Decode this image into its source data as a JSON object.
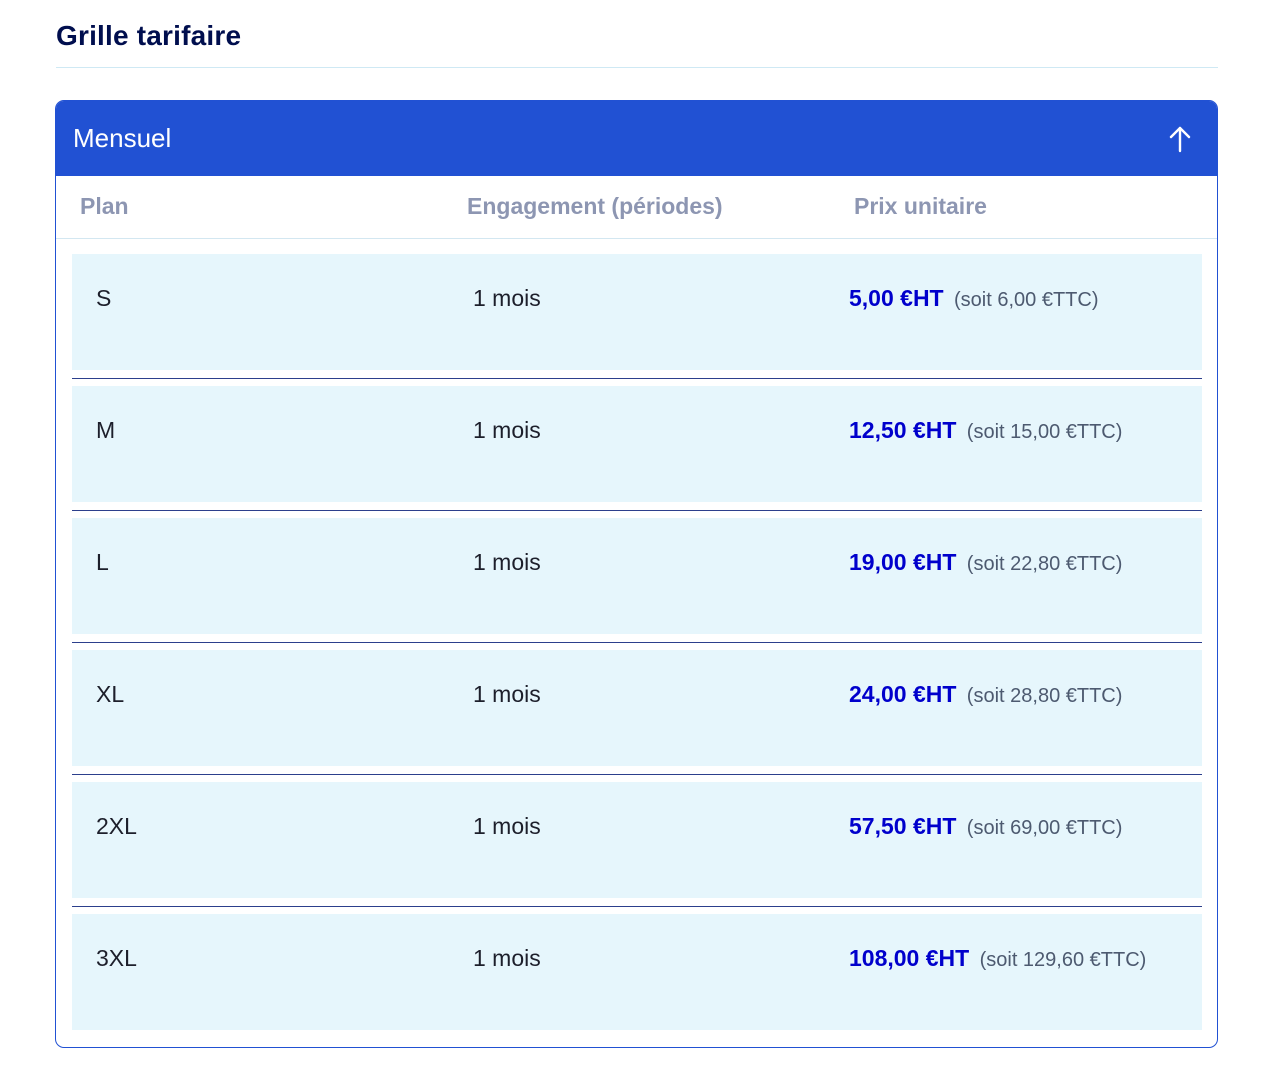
{
  "section": {
    "title": "Grille tarifaire"
  },
  "panel": {
    "title": "Mensuel",
    "toggle_icon": "arrow-up-icon"
  },
  "table": {
    "headers": [
      "Plan",
      "Engagement (périodes)",
      "Prix unitaire"
    ],
    "rows": [
      {
        "plan": "S",
        "engagement": "1 mois",
        "price_ht": "5,00 €HT",
        "price_ttc": "(soit 6,00 €TTC)"
      },
      {
        "plan": "M",
        "engagement": "1 mois",
        "price_ht": "12,50 €HT",
        "price_ttc": "(soit 15,00 €TTC)"
      },
      {
        "plan": "L",
        "engagement": "1 mois",
        "price_ht": "19,00 €HT",
        "price_ttc": "(soit 22,80 €TTC)"
      },
      {
        "plan": "XL",
        "engagement": "1 mois",
        "price_ht": "24,00 €HT",
        "price_ttc": "(soit 28,80 €TTC)"
      },
      {
        "plan": "2XL",
        "engagement": "1 mois",
        "price_ht": "57,50 €HT",
        "price_ttc": "(soit 69,00 €TTC)"
      },
      {
        "plan": "3XL",
        "engagement": "1 mois",
        "price_ht": "108,00 €HT",
        "price_ttc": "(soit 129,60 €TTC)"
      }
    ]
  },
  "colors": {
    "accent": "#2151d3",
    "title": "#000e4e",
    "row_background": "#e6f6fc",
    "price_ht": "#0000cc",
    "header_text": "#8d96b2"
  }
}
